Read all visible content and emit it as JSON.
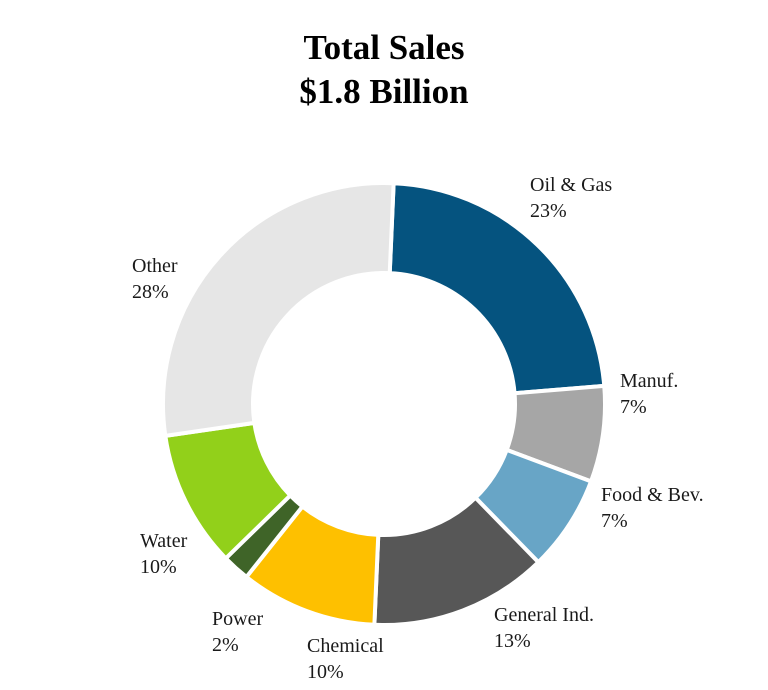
{
  "chart_data": {
    "type": "pie",
    "subtype": "donut",
    "title": "Total Sales",
    "subtitle": "$1.8 Billion",
    "slices": [
      {
        "label": "Oil & Gas",
        "value": 23,
        "display": "23%",
        "color": "#05537f"
      },
      {
        "label": "Manuf.",
        "value": 7,
        "display": "7%",
        "color": "#a6a6a6"
      },
      {
        "label": "Food & Bev.",
        "value": 7,
        "display": "7%",
        "color": "#68a5c6"
      },
      {
        "label": "General Ind.",
        "value": 13,
        "display": "13%",
        "color": "#575757"
      },
      {
        "label": "Chemical",
        "value": 10,
        "display": "10%",
        "color": "#fec000"
      },
      {
        "label": "Power",
        "value": 2,
        "display": "2%",
        "color": "#3f6428"
      },
      {
        "label": "Water",
        "value": 10,
        "display": "10%",
        "color": "#92d01a"
      },
      {
        "label": "Other",
        "value": 28,
        "display": "28%",
        "color": "#e6e6e6"
      }
    ],
    "legend": "none",
    "data_labels": "outside"
  }
}
